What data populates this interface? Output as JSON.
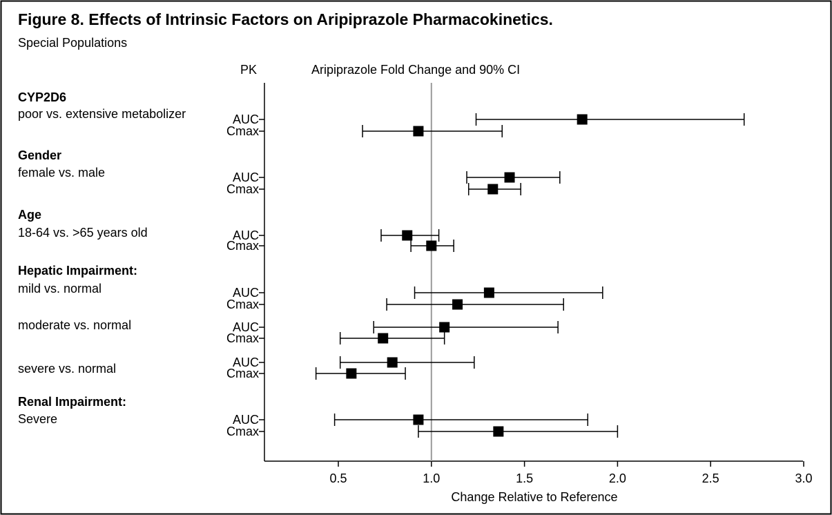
{
  "title": "Figure 8. Effects of Intrinsic Factors on Aripiprazole Pharmacokinetics.",
  "subtitle": "Special Populations",
  "pk_header": "PK",
  "plot_header": "Aripiprazole Fold Change and 90% CI",
  "chart_data": {
    "type": "forest",
    "title": "Figure 8. Effects of Intrinsic Factors on Aripiprazole Pharmacokinetics.",
    "xlabel": "Change Relative to Reference",
    "xlim": [
      0.1,
      3.0
    ],
    "xticks": [
      "0.5",
      "1.0",
      "1.5",
      "2.0",
      "2.5",
      "3.0"
    ],
    "reference_line": 1.0,
    "groups": [
      {
        "label": "CYP2D6",
        "sublabel": "poor vs. extensive metabolizer",
        "rows": [
          {
            "pk": "AUC",
            "estimate": 1.81,
            "lower": 1.24,
            "upper": 2.68
          },
          {
            "pk": "Cmax",
            "estimate": 0.93,
            "lower": 0.63,
            "upper": 1.38
          }
        ]
      },
      {
        "label": "Gender",
        "sublabel": "female vs. male",
        "rows": [
          {
            "pk": "AUC",
            "estimate": 1.42,
            "lower": 1.19,
            "upper": 1.69
          },
          {
            "pk": "Cmax",
            "estimate": 1.33,
            "lower": 1.2,
            "upper": 1.48
          }
        ]
      },
      {
        "label": "Age",
        "sublabel": "18-64 vs. >65 years old",
        "rows": [
          {
            "pk": "AUC",
            "estimate": 0.87,
            "lower": 0.73,
            "upper": 1.04
          },
          {
            "pk": "Cmax",
            "estimate": 1.0,
            "lower": 0.89,
            "upper": 1.12
          }
        ]
      },
      {
        "label": "Hepatic Impairment:",
        "sublabel": "mild vs. normal",
        "rows": [
          {
            "pk": "AUC",
            "estimate": 1.31,
            "lower": 0.91,
            "upper": 1.92
          },
          {
            "pk": "Cmax",
            "estimate": 1.14,
            "lower": 0.76,
            "upper": 1.71
          }
        ]
      },
      {
        "label": "",
        "sublabel": "moderate vs. normal",
        "rows": [
          {
            "pk": "AUC",
            "estimate": 1.07,
            "lower": 0.69,
            "upper": 1.68
          },
          {
            "pk": "Cmax",
            "estimate": 0.74,
            "lower": 0.51,
            "upper": 1.07
          }
        ]
      },
      {
        "label": "",
        "sublabel": "severe vs. normal",
        "rows": [
          {
            "pk": "AUC",
            "estimate": 0.79,
            "lower": 0.51,
            "upper": 1.23
          },
          {
            "pk": "Cmax",
            "estimate": 0.57,
            "lower": 0.38,
            "upper": 0.86
          }
        ]
      },
      {
        "label": "Renal Impairment:",
        "sublabel": "Severe",
        "rows": [
          {
            "pk": "AUC",
            "estimate": 0.93,
            "lower": 0.48,
            "upper": 1.84
          },
          {
            "pk": "Cmax",
            "estimate": 1.36,
            "lower": 0.93,
            "upper": 2.0
          }
        ]
      }
    ]
  }
}
